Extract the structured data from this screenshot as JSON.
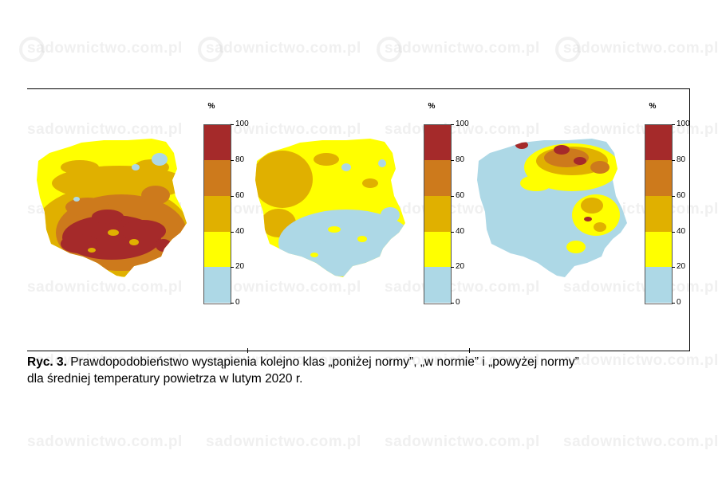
{
  "watermark": {
    "text": "sadownictwo.com.pl"
  },
  "legend": {
    "unit": "%",
    "ticks": [
      "100",
      "80",
      "60",
      "40",
      "20",
      "0"
    ],
    "classes": [
      {
        "from": 80,
        "to": 100,
        "color": "#a52a2a"
      },
      {
        "from": 60,
        "to": 80,
        "color": "#cd7a1c"
      },
      {
        "from": 40,
        "to": 60,
        "color": "#e0b000"
      },
      {
        "from": 20,
        "to": 40,
        "color": "#ffff00"
      },
      {
        "from": 0,
        "to": 20,
        "color": "#add8e6"
      }
    ]
  },
  "maps": [
    {
      "class_label": "poniżej normy"
    },
    {
      "class_label": "w normie"
    },
    {
      "class_label": "powyżej normy"
    }
  ],
  "caption": {
    "label": "Ryc. 3.",
    "line1": " Prawdopodobieństwo wystąpienia kolejno klas „poniżej normy”, „w normie” i „powyżej normy”",
    "line2": "dla średniej temperatury powietrza w lutym 2020 r."
  }
}
